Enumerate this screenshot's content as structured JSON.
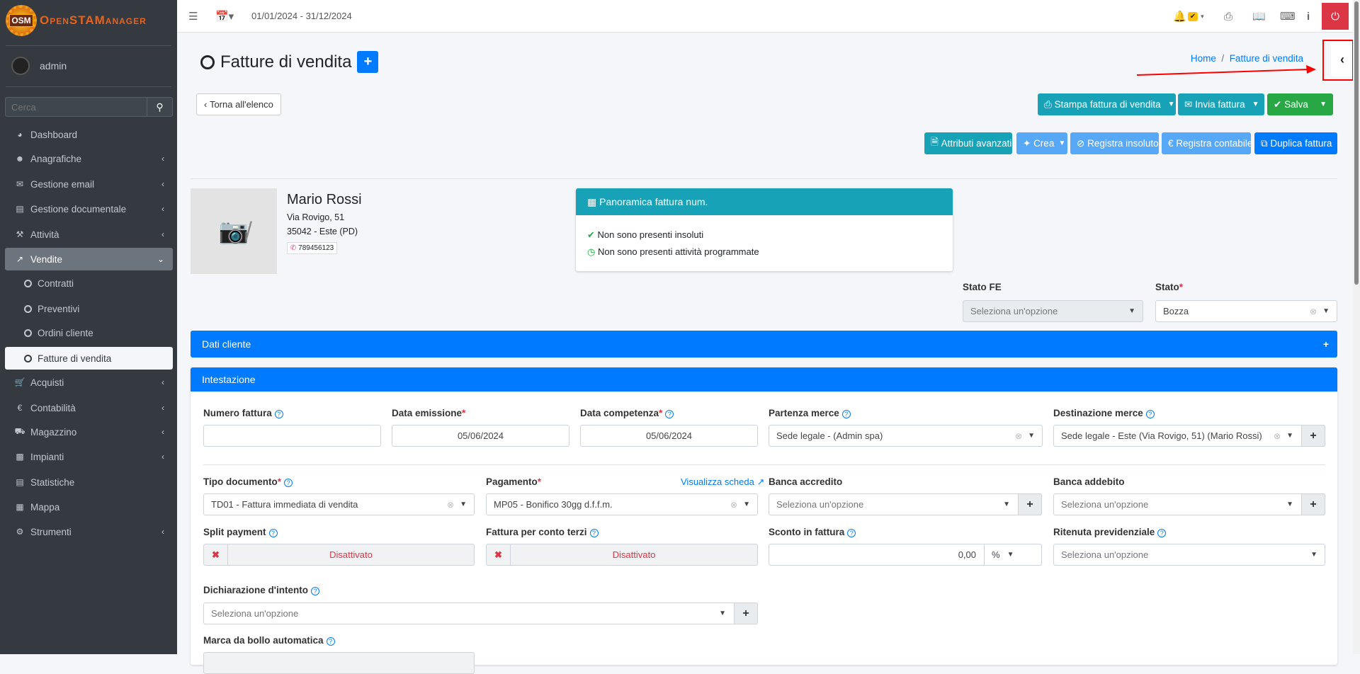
{
  "brand": {
    "logo_text": "OSM",
    "name": "OpenSTAManager"
  },
  "topbar": {
    "date_range": "01/01/2024 - 31/12/2024"
  },
  "sidebar": {
    "user": "admin",
    "search_placeholder": "Cerca",
    "items": [
      {
        "label": "Dashboard",
        "icon": "dashboard-icon"
      },
      {
        "label": "Anagrafiche",
        "icon": "users-icon"
      },
      {
        "label": "Gestione email",
        "icon": "envelope-icon"
      },
      {
        "label": "Gestione documentale",
        "icon": "file-icon"
      },
      {
        "label": "Attività",
        "icon": "wrench-icon"
      },
      {
        "label": "Vendite",
        "icon": "chart-line-icon"
      },
      {
        "label": "Contratti"
      },
      {
        "label": "Preventivi"
      },
      {
        "label": "Ordini cliente"
      },
      {
        "label": "Fatture di vendita"
      },
      {
        "label": "Acquisti",
        "icon": "cart-icon"
      },
      {
        "label": "Contabilità",
        "icon": "euro-icon"
      },
      {
        "label": "Magazzino",
        "icon": "truck-icon"
      },
      {
        "label": "Impianti",
        "icon": "sitemap-icon"
      },
      {
        "label": "Statistiche",
        "icon": "bar-chart-icon"
      },
      {
        "label": "Mappa",
        "icon": "map-icon"
      },
      {
        "label": "Strumenti",
        "icon": "cog-icon"
      }
    ]
  },
  "page": {
    "title": "Fatture di vendita",
    "breadcrumb": [
      "Home",
      "Fatture di vendita"
    ],
    "back": "Torna all'elenco"
  },
  "actions": {
    "stampa": "Stampa fattura di vendita",
    "invia": "Invia fattura",
    "salva": "Salva",
    "attributi": "Attributi avanzati",
    "crea": "Crea",
    "insoluto": "Registra insoluto",
    "contabile": "Registra contabile",
    "duplica": "Duplica fattura"
  },
  "customer": {
    "name": "Mario Rossi",
    "address": "Via Rovigo, 51",
    "city": "35042 - Este (PD)",
    "phone": "789456123"
  },
  "overview": {
    "title": "Panoramica fattura num.",
    "lines": [
      "Non sono presenti insoluti",
      "Non sono presenti attività programmate"
    ]
  },
  "status": {
    "fe_label": "Stato FE",
    "fe_placeholder": "Seleziona un'opzione",
    "stato_label": "Stato",
    "stato_value": "Bozza"
  },
  "sections": {
    "dati_cliente": "Dati cliente",
    "intestazione": "Intestazione"
  },
  "form": {
    "numero_label": "Numero fattura",
    "numero_value": "",
    "emissione_label": "Data emissione",
    "emissione_value": "05/06/2024",
    "competenza_label": "Data competenza",
    "competenza_value": "05/06/2024",
    "partenza_label": "Partenza merce",
    "partenza_value": "Sede legale - (Admin spa)",
    "destinazione_label": "Destinazione merce",
    "destinazione_value": "Sede legale - Este (Via Rovigo, 51) (Mario Rossi)",
    "tipo_label": "Tipo documento",
    "tipo_value": "TD01 - Fattura immediata di vendita",
    "pagamento_label": "Pagamento",
    "pagamento_value": "MP05 - Bonifico 30gg d.f.f.m.",
    "visualizza": "Visualizza scheda",
    "banca_accredito_label": "Banca accredito",
    "banca_addebito_label": "Banca addebito",
    "placeholder": "Seleziona un'opzione",
    "split_label": "Split payment",
    "split_value": "Disattivato",
    "conto_terzi_label": "Fattura per conto terzi",
    "conto_terzi_value": "Disattivato",
    "sconto_label": "Sconto in fattura",
    "sconto_value": "0,00",
    "sconto_unit": "%",
    "ritenuta_label": "Ritenuta previdenziale",
    "dichiarazione_label": "Dichiarazione d'intento",
    "marca_label": "Marca da bollo automatica"
  },
  "colors": {
    "primary": "#007bff",
    "teal": "#17a2b8",
    "success": "#28a745",
    "danger": "#dc3545",
    "sidebar": "#343a40"
  }
}
